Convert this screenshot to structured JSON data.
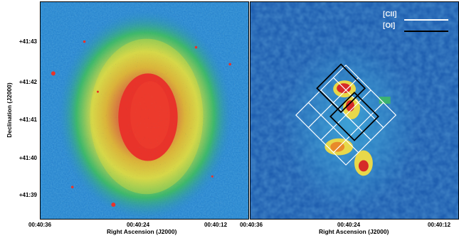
{
  "y_axis": {
    "title": "Declination (J2000)",
    "ticks": [
      "+41:43",
      "+41:42",
      "+41:41",
      "+41:40",
      "+41:39"
    ]
  },
  "left_panel": {
    "x_ticks": [
      "00:40:36",
      "00:40:24",
      "00:40:12"
    ],
    "x_title": "Right Ascension (J2000)"
  },
  "right_panel": {
    "x_ticks": [
      "00:40:36",
      "00:40:24",
      "00:40:12"
    ],
    "x_title": "Right Ascension (J2000)",
    "legend": [
      {
        "label": "[CII]",
        "color": "#ffffff"
      },
      {
        "label": "[OI]",
        "color": "#000000"
      }
    ]
  },
  "colors": {
    "left_bg": "#2a86cf",
    "left_green": "#3fbf5a",
    "left_yellow": "#e8e03a",
    "left_orange": "#f0a020",
    "left_core": "#e8332a",
    "right_bg": "#1f5fb0",
    "right_cyan": "#3fa6d8",
    "right_emission": "#e8d84a",
    "right_peak": "#d62a28"
  }
}
